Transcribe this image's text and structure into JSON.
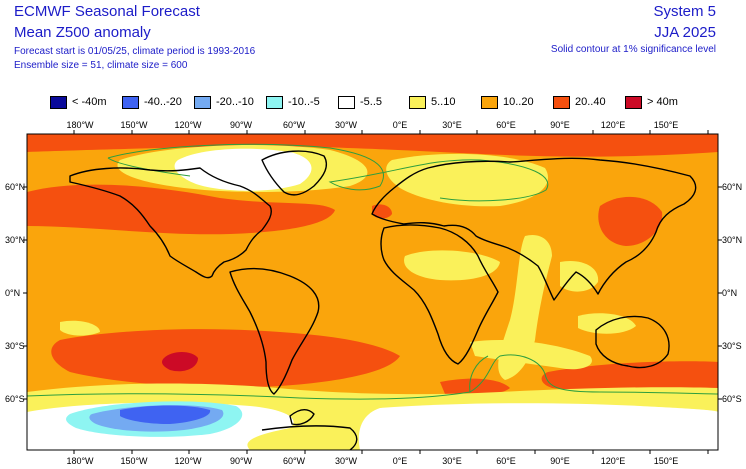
{
  "header": {
    "title_line1": "ECMWF Seasonal Forecast",
    "title_line2": "Mean Z500 anomaly",
    "forecast_info": "Forecast start is 01/05/25, climate period is 1993-2016",
    "ensemble_info": "Ensemble size = 51, climate size = 600",
    "system": "System 5",
    "season": "JJA 2025",
    "significance_note": "Solid contour at 1% significance level"
  },
  "legend": [
    {
      "label": "< -40m",
      "color": "#0a0a9a"
    },
    {
      "label": "-40..-20",
      "color": "#3f63f2"
    },
    {
      "label": "-20..-10",
      "color": "#74aaf2"
    },
    {
      "label": "-10..-5",
      "color": "#8ef5f2"
    },
    {
      "label": "-5..5",
      "color": "#ffffff"
    },
    {
      "label": "5..10",
      "color": "#faf15a"
    },
    {
      "label": "10..20",
      "color": "#faa50c"
    },
    {
      "label": "20..40",
      "color": "#f5500f"
    },
    {
      "label": "> 40m",
      "color": "#cc0a26"
    }
  ],
  "axes": {
    "lon_labels": [
      "180°W",
      "150°W",
      "120°W",
      "90°W",
      "60°W",
      "30°W",
      "0°E",
      "30°E",
      "60°E",
      "90°E",
      "120°E",
      "150°E"
    ],
    "lat_labels": [
      "60°N",
      "30°N",
      "0°N",
      "30°S",
      "60°S"
    ]
  }
}
